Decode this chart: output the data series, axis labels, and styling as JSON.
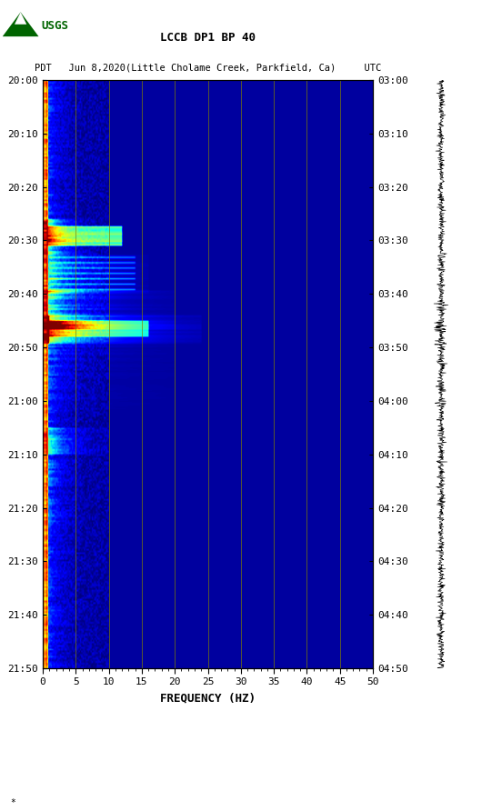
{
  "title_line1": "LCCB DP1 BP 40",
  "title_line2": "PDT   Jun 8,2020(Little Cholame Creek, Parkfield, Ca)     UTC",
  "xlabel": "FREQUENCY (HZ)",
  "freq_min": 0,
  "freq_max": 50,
  "freq_ticks": [
    0,
    5,
    10,
    15,
    20,
    25,
    30,
    35,
    40,
    45,
    50
  ],
  "left_time_labels": [
    "20:00",
    "20:10",
    "20:20",
    "20:30",
    "20:40",
    "20:50",
    "21:00",
    "21:10",
    "21:20",
    "21:30",
    "21:40",
    "21:50"
  ],
  "right_time_labels": [
    "03:00",
    "03:10",
    "03:20",
    "03:30",
    "03:40",
    "03:50",
    "04:00",
    "04:10",
    "04:20",
    "04:30",
    "04:40",
    "04:50"
  ],
  "grid_color": "#808000",
  "grid_freqs": [
    5,
    10,
    15,
    20,
    25,
    30,
    35,
    40,
    45
  ],
  "colormap": "jet",
  "vmin": -2,
  "vmax": 5
}
